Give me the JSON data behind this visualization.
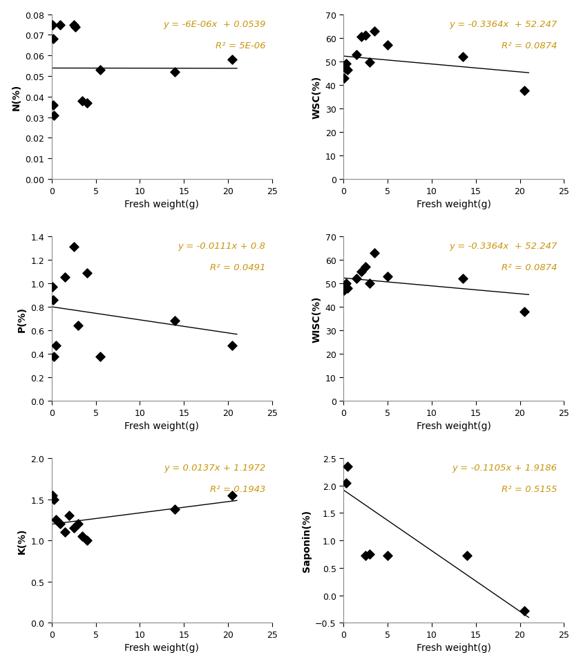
{
  "plots": [
    {
      "ylabel": "N(%)",
      "equation": "y = -6E-06x  + 0.0539",
      "r2": "R² = 5E-06",
      "slope": -6e-06,
      "intercept": 0.0539,
      "ylim": [
        0,
        0.08
      ],
      "yticks": [
        0,
        0.01,
        0.02,
        0.03,
        0.04,
        0.05,
        0.06,
        0.07,
        0.08
      ],
      "line_xstart": 0,
      "line_xend": 21,
      "scatter_x": [
        0.1,
        0.15,
        0.2,
        0.3,
        1.0,
        2.5,
        2.7,
        3.5,
        4.0,
        5.5,
        14.0,
        20.5
      ],
      "scatter_y": [
        0.075,
        0.068,
        0.036,
        0.031,
        0.075,
        0.075,
        0.074,
        0.038,
        0.037,
        0.053,
        0.052,
        0.058
      ]
    },
    {
      "ylabel": "WSC(%)",
      "equation": "y = -0.3364x  + 52.247",
      "r2": "R² = 0.0874",
      "slope": -0.3364,
      "intercept": 52.247,
      "ylim": [
        0,
        70
      ],
      "yticks": [
        0,
        10,
        20,
        30,
        40,
        50,
        60,
        70
      ],
      "line_xstart": 0,
      "line_xend": 21,
      "scatter_x": [
        0.1,
        0.2,
        0.3,
        0.5,
        1.5,
        2.0,
        2.5,
        3.0,
        3.5,
        5.0,
        13.5,
        20.5
      ],
      "scatter_y": [
        43.0,
        47.0,
        49.0,
        46.5,
        53.0,
        60.5,
        61.0,
        49.5,
        63.0,
        57.0,
        52.0,
        37.5
      ]
    },
    {
      "ylabel": "P(%)",
      "equation": "y = -0.0111x + 0.8",
      "r2": "R² = 0.0491",
      "slope": -0.0111,
      "intercept": 0.8,
      "ylim": [
        0,
        1.4
      ],
      "yticks": [
        0,
        0.2,
        0.4,
        0.6,
        0.8,
        1.0,
        1.2,
        1.4
      ],
      "line_xstart": 0,
      "line_xend": 21,
      "scatter_x": [
        0.1,
        0.15,
        0.3,
        0.5,
        1.5,
        2.5,
        3.0,
        4.0,
        5.5,
        14.0,
        20.5
      ],
      "scatter_y": [
        0.97,
        0.86,
        0.38,
        0.47,
        1.05,
        1.31,
        0.64,
        1.09,
        0.38,
        0.68,
        0.47
      ]
    },
    {
      "ylabel": "WISC(%)",
      "equation": "y = -0.3364x  + 52.247",
      "r2": "R² = 0.0874",
      "slope": -0.3364,
      "intercept": 52.247,
      "ylim": [
        0,
        70
      ],
      "yticks": [
        0,
        10,
        20,
        30,
        40,
        50,
        60,
        70
      ],
      "line_xstart": 0,
      "line_xend": 21,
      "scatter_x": [
        0.1,
        0.2,
        0.3,
        0.5,
        1.5,
        2.0,
        2.5,
        3.0,
        3.5,
        5.0,
        13.5,
        20.5
      ],
      "scatter_y": [
        47.0,
        48.0,
        50.0,
        48.0,
        52.0,
        55.0,
        57.0,
        50.0,
        63.0,
        53.0,
        52.0,
        38.0
      ]
    },
    {
      "ylabel": "K(%)",
      "equation": "y = 0.0137x + 1.1972",
      "r2": "R² = 0.1943",
      "slope": 0.0137,
      "intercept": 1.1972,
      "ylim": [
        0,
        2
      ],
      "yticks": [
        0,
        0.5,
        1.0,
        1.5,
        2.0
      ],
      "line_xstart": 0,
      "line_xend": 21,
      "scatter_x": [
        0.1,
        0.3,
        0.5,
        1.0,
        1.5,
        2.0,
        2.5,
        3.0,
        3.5,
        4.0,
        14.0,
        20.5
      ],
      "scatter_y": [
        1.55,
        1.5,
        1.25,
        1.2,
        1.1,
        1.3,
        1.15,
        1.2,
        1.05,
        1.0,
        1.38,
        1.55
      ]
    },
    {
      "ylabel": "Saponin(%)",
      "equation": "y = -0.1105x + 1.9186",
      "r2": "R² = 0.5155",
      "slope": -0.1105,
      "intercept": 1.9186,
      "ylim": [
        -0.5,
        2.5
      ],
      "yticks": [
        -0.5,
        0,
        0.5,
        1.0,
        1.5,
        2.0,
        2.5
      ],
      "line_xstart": 0,
      "line_xend": 21,
      "scatter_x": [
        0.3,
        0.5,
        2.5,
        3.0,
        5.0,
        14.0,
        20.5
      ],
      "scatter_y": [
        2.05,
        2.35,
        0.72,
        0.75,
        0.72,
        0.72,
        -0.28
      ]
    }
  ],
  "xlabel": "Fresh weight(g)",
  "xlim": [
    0,
    25
  ],
  "xticks": [
    0,
    5,
    10,
    15,
    20,
    25
  ],
  "equation_color": "#C8960C",
  "r2_color": "#C8960C",
  "scatter_color": "black",
  "line_color": "black",
  "axis_color": "black",
  "spine_color": "#888888",
  "tick_label_color": "black",
  "label_color": "black"
}
